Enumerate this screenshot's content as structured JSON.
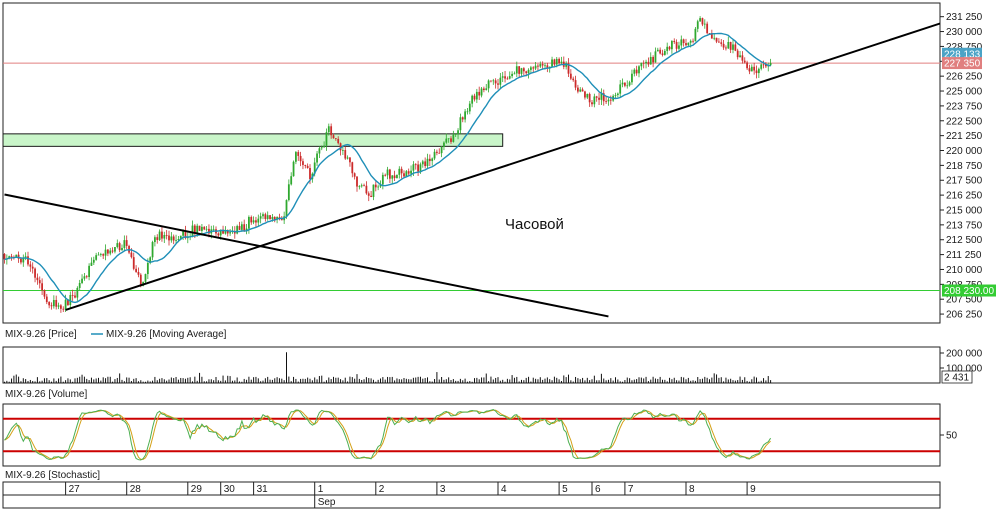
{
  "chart_data": [
    {
      "type": "candlestick",
      "panel": "price",
      "annotation": "Часовой",
      "ylim": [
        205500,
        232400
      ],
      "y_ticks": [
        "231 250",
        "230 000",
        "228 750",
        "227 500",
        "226 250",
        "225 000",
        "223 750",
        "222 500",
        "221 250",
        "220 000",
        "218 750",
        "217 500",
        "216 250",
        "215 000",
        "213 750",
        "212 500",
        "211 250",
        "210 000",
        "208 750",
        "207 500",
        "206 250"
      ],
      "y_tick_values": [
        231250,
        230000,
        228750,
        227500,
        226250,
        225000,
        223750,
        222500,
        221250,
        220000,
        218750,
        217500,
        216250,
        215000,
        213750,
        212500,
        211250,
        210000,
        208750,
        207500,
        206250
      ],
      "tags": [
        {
          "label": "228 133",
          "value": 228133,
          "color": "#4aa3c6"
        },
        {
          "label": "227 350",
          "value": 227350,
          "color": "#e07f7f"
        },
        {
          "label": "208 230.00",
          "value": 208230,
          "color": "#33cc33"
        }
      ],
      "hlines": [
        {
          "value": 227350,
          "color": "#e07f7f"
        },
        {
          "value": 208230,
          "color": "#33cc33"
        }
      ],
      "zone": {
        "from_bar": 0,
        "to_bar": 212,
        "low": 220350,
        "high": 221400,
        "fill": "#c9f5c9",
        "stroke": "#1a1a1a"
      },
      "trendlines": [
        {
          "from": [
            0,
            216300
          ],
          "to": [
            257,
            206050
          ],
          "color": "#000000"
        },
        {
          "from": [
            26,
            206600
          ],
          "to": [
            400,
            230800
          ],
          "color": "#000000"
        }
      ],
      "legend": {
        "price": "MIX-9.26 [Price]",
        "ma": "MIX-9.26 [Moving Average]"
      },
      "colors": {
        "up": "#2fa82f",
        "down": "#cc2a2a",
        "ma": "#1f8fb8"
      },
      "x_bar_count": 330,
      "anchors": [
        [
          0,
          211300
        ],
        [
          10,
          210700
        ],
        [
          18,
          207500
        ],
        [
          24,
          206700
        ],
        [
          30,
          208000
        ],
        [
          38,
          210700
        ],
        [
          45,
          211600
        ],
        [
          52,
          212300
        ],
        [
          58,
          208500
        ],
        [
          64,
          212800
        ],
        [
          72,
          212700
        ],
        [
          80,
          213300
        ],
        [
          92,
          212900
        ],
        [
          102,
          213700
        ],
        [
          110,
          214800
        ],
        [
          118,
          213800
        ],
        [
          124,
          220000
        ],
        [
          130,
          218000
        ],
        [
          138,
          221600
        ],
        [
          146,
          219500
        ],
        [
          150,
          217000
        ],
        [
          156,
          216500
        ],
        [
          162,
          218000
        ],
        [
          172,
          218200
        ],
        [
          182,
          219400
        ],
        [
          190,
          221000
        ],
        [
          198,
          224000
        ],
        [
          206,
          225500
        ],
        [
          216,
          226500
        ],
        [
          226,
          227200
        ],
        [
          238,
          227300
        ],
        [
          244,
          225000
        ],
        [
          250,
          224300
        ],
        [
          260,
          224700
        ],
        [
          268,
          226500
        ],
        [
          276,
          227800
        ],
        [
          284,
          229000
        ],
        [
          292,
          228800
        ],
        [
          296,
          231000
        ],
        [
          302,
          229300
        ],
        [
          310,
          228700
        ],
        [
          316,
          227000
        ],
        [
          320,
          226800
        ],
        [
          326,
          227200
        ]
      ]
    },
    {
      "type": "bar",
      "panel": "volume",
      "legend": "MIX-9.26 [Volume]",
      "ylim": [
        0,
        240000
      ],
      "y_ticks": [
        "200 000",
        "100 000",
        "2 431"
      ],
      "y_tick_values": [
        200000,
        100000,
        2431
      ],
      "last_value": 2431
    },
    {
      "type": "line",
      "panel": "stochastic",
      "legend": "MIX-9.26 [Stochastic]",
      "ylim": [
        0,
        100
      ],
      "y_ticks": [
        "50"
      ],
      "y_tick_values": [
        50
      ],
      "levels": [
        80,
        20
      ],
      "colors": {
        "k": "#4caf50",
        "d": "#d4a017",
        "level": "#cc0000"
      }
    }
  ],
  "time_axis": {
    "days": [
      {
        "label": "27",
        "bar": 26
      },
      {
        "label": "28",
        "bar": 52
      },
      {
        "label": "29",
        "bar": 78
      },
      {
        "label": "30",
        "bar": 92
      },
      {
        "label": "31",
        "bar": 106
      },
      {
        "label": "1",
        "bar": 132
      },
      {
        "label": "2",
        "bar": 158
      },
      {
        "label": "3",
        "bar": 184
      },
      {
        "label": "4",
        "bar": 210
      },
      {
        "label": "5",
        "bar": 236
      },
      {
        "label": "6",
        "bar": 250
      },
      {
        "label": "7",
        "bar": 264
      },
      {
        "label": "8",
        "bar": 290
      },
      {
        "label": "9",
        "bar": 316
      }
    ],
    "month": {
      "label": "Sep",
      "bar": 132
    }
  }
}
